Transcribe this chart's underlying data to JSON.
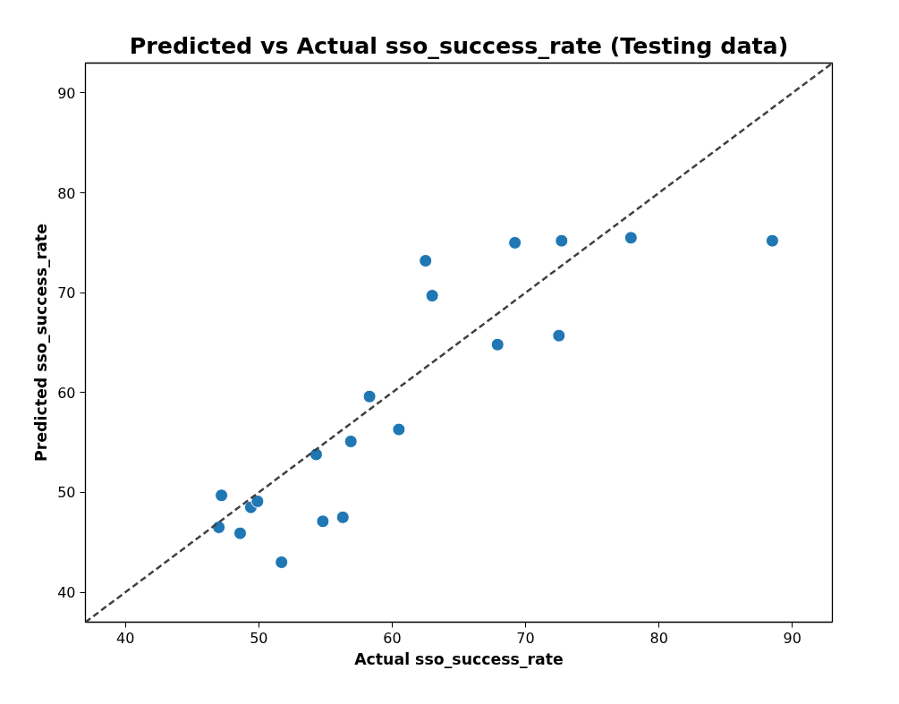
{
  "chart_data": {
    "type": "scatter",
    "title": "Predicted vs Actual sso_success_rate (Testing data)",
    "xlabel": "Actual sso_success_rate",
    "ylabel": "Predicted sso_success_rate",
    "xlim": [
      37,
      93
    ],
    "ylim": [
      37,
      93
    ],
    "xticks": [
      40,
      50,
      60,
      70,
      80,
      90
    ],
    "yticks": [
      40,
      50,
      60,
      70,
      80,
      90
    ],
    "series": [
      {
        "color": "#1f77b4",
        "marker": "circle",
        "x": [
          47.0,
          47.2,
          48.6,
          49.4,
          49.9,
          51.7,
          54.3,
          54.8,
          56.3,
          56.9,
          58.3,
          60.5,
          62.5,
          63.0,
          67.9,
          69.2,
          72.5,
          72.7,
          77.9,
          88.5
        ],
        "values": [
          46.5,
          49.7,
          45.9,
          48.5,
          49.1,
          43.0,
          53.8,
          47.1,
          47.5,
          55.1,
          59.6,
          56.3,
          73.2,
          69.7,
          64.8,
          75.0,
          65.7,
          75.2,
          75.5,
          75.2
        ]
      },
      {
        "type": "line",
        "color": "#404040",
        "line_style": "dashed",
        "x": [
          37,
          93
        ],
        "values": [
          37,
          93
        ]
      }
    ]
  }
}
